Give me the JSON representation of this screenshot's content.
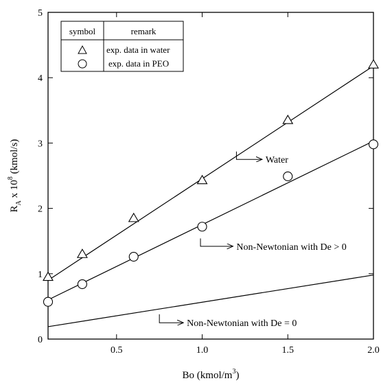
{
  "chart_data": {
    "type": "line",
    "xlabel": {
      "base": "Bo (kmol/m",
      "sup": "3",
      "end": ")"
    },
    "ylabel": {
      "p1": "R",
      "sub": "A",
      "p2": " x 10",
      "sup": "8",
      "p3": " (kmol/s)"
    },
    "xlim": [
      0.1,
      2.0
    ],
    "ylim": [
      0,
      5
    ],
    "xticks": [
      0.5,
      1.0,
      1.5,
      2.0
    ],
    "xtick_labels": [
      "0.5",
      "1.0",
      "1.5",
      "2.0"
    ],
    "yticks": [
      0,
      1,
      2,
      3,
      4,
      5
    ],
    "ytick_labels": [
      "0",
      "1",
      "2",
      "3",
      "4",
      "5"
    ],
    "legend": {
      "placement": "top-left",
      "header_symbol": "symbol",
      "header_remark": "remark",
      "rows": [
        {
          "marker": "triangle",
          "text": "exp. data in water"
        },
        {
          "marker": "circle",
          "text": "exp. data in PEO"
        }
      ]
    },
    "series": [
      {
        "key": "water_exp",
        "marker": "triangle",
        "x": [
          0.1,
          0.3,
          0.6,
          1.0,
          1.5,
          2.0
        ],
        "y": [
          0.95,
          1.3,
          1.85,
          2.43,
          3.35,
          4.2
        ]
      },
      {
        "key": "peo_exp",
        "marker": "circle",
        "x": [
          0.1,
          0.3,
          0.6,
          1.0,
          1.5,
          2.0
        ],
        "y": [
          0.57,
          0.84,
          1.26,
          1.72,
          2.49,
          2.98
        ]
      },
      {
        "key": "water_model",
        "line": true,
        "x": [
          0.1,
          2.0
        ],
        "y": [
          0.9,
          4.18
        ]
      },
      {
        "key": "de_pos_model",
        "line": true,
        "x": [
          0.1,
          2.0
        ],
        "y": [
          0.6,
          3.03
        ]
      },
      {
        "key": "de_zero_model",
        "line": true,
        "x": [
          0.1,
          2.0
        ],
        "y": [
          0.19,
          0.98
        ]
      }
    ],
    "annotations": [
      {
        "text": "Water",
        "arrow_from": [
          1.2,
          2.87
        ],
        "arrow_elbow": [
          1.2,
          2.75
        ],
        "arrow_to": [
          1.35,
          2.75
        ]
      },
      {
        "text": "Non-Newtonian with De > 0",
        "arrow_from": [
          0.99,
          1.54
        ],
        "arrow_elbow": [
          0.99,
          1.42
        ],
        "arrow_to": [
          1.18,
          1.42
        ]
      },
      {
        "text": "Non-Newtonian with  De = 0",
        "arrow_from": [
          0.75,
          0.38
        ],
        "arrow_elbow": [
          0.75,
          0.25
        ],
        "arrow_to": [
          0.89,
          0.25
        ]
      }
    ]
  }
}
